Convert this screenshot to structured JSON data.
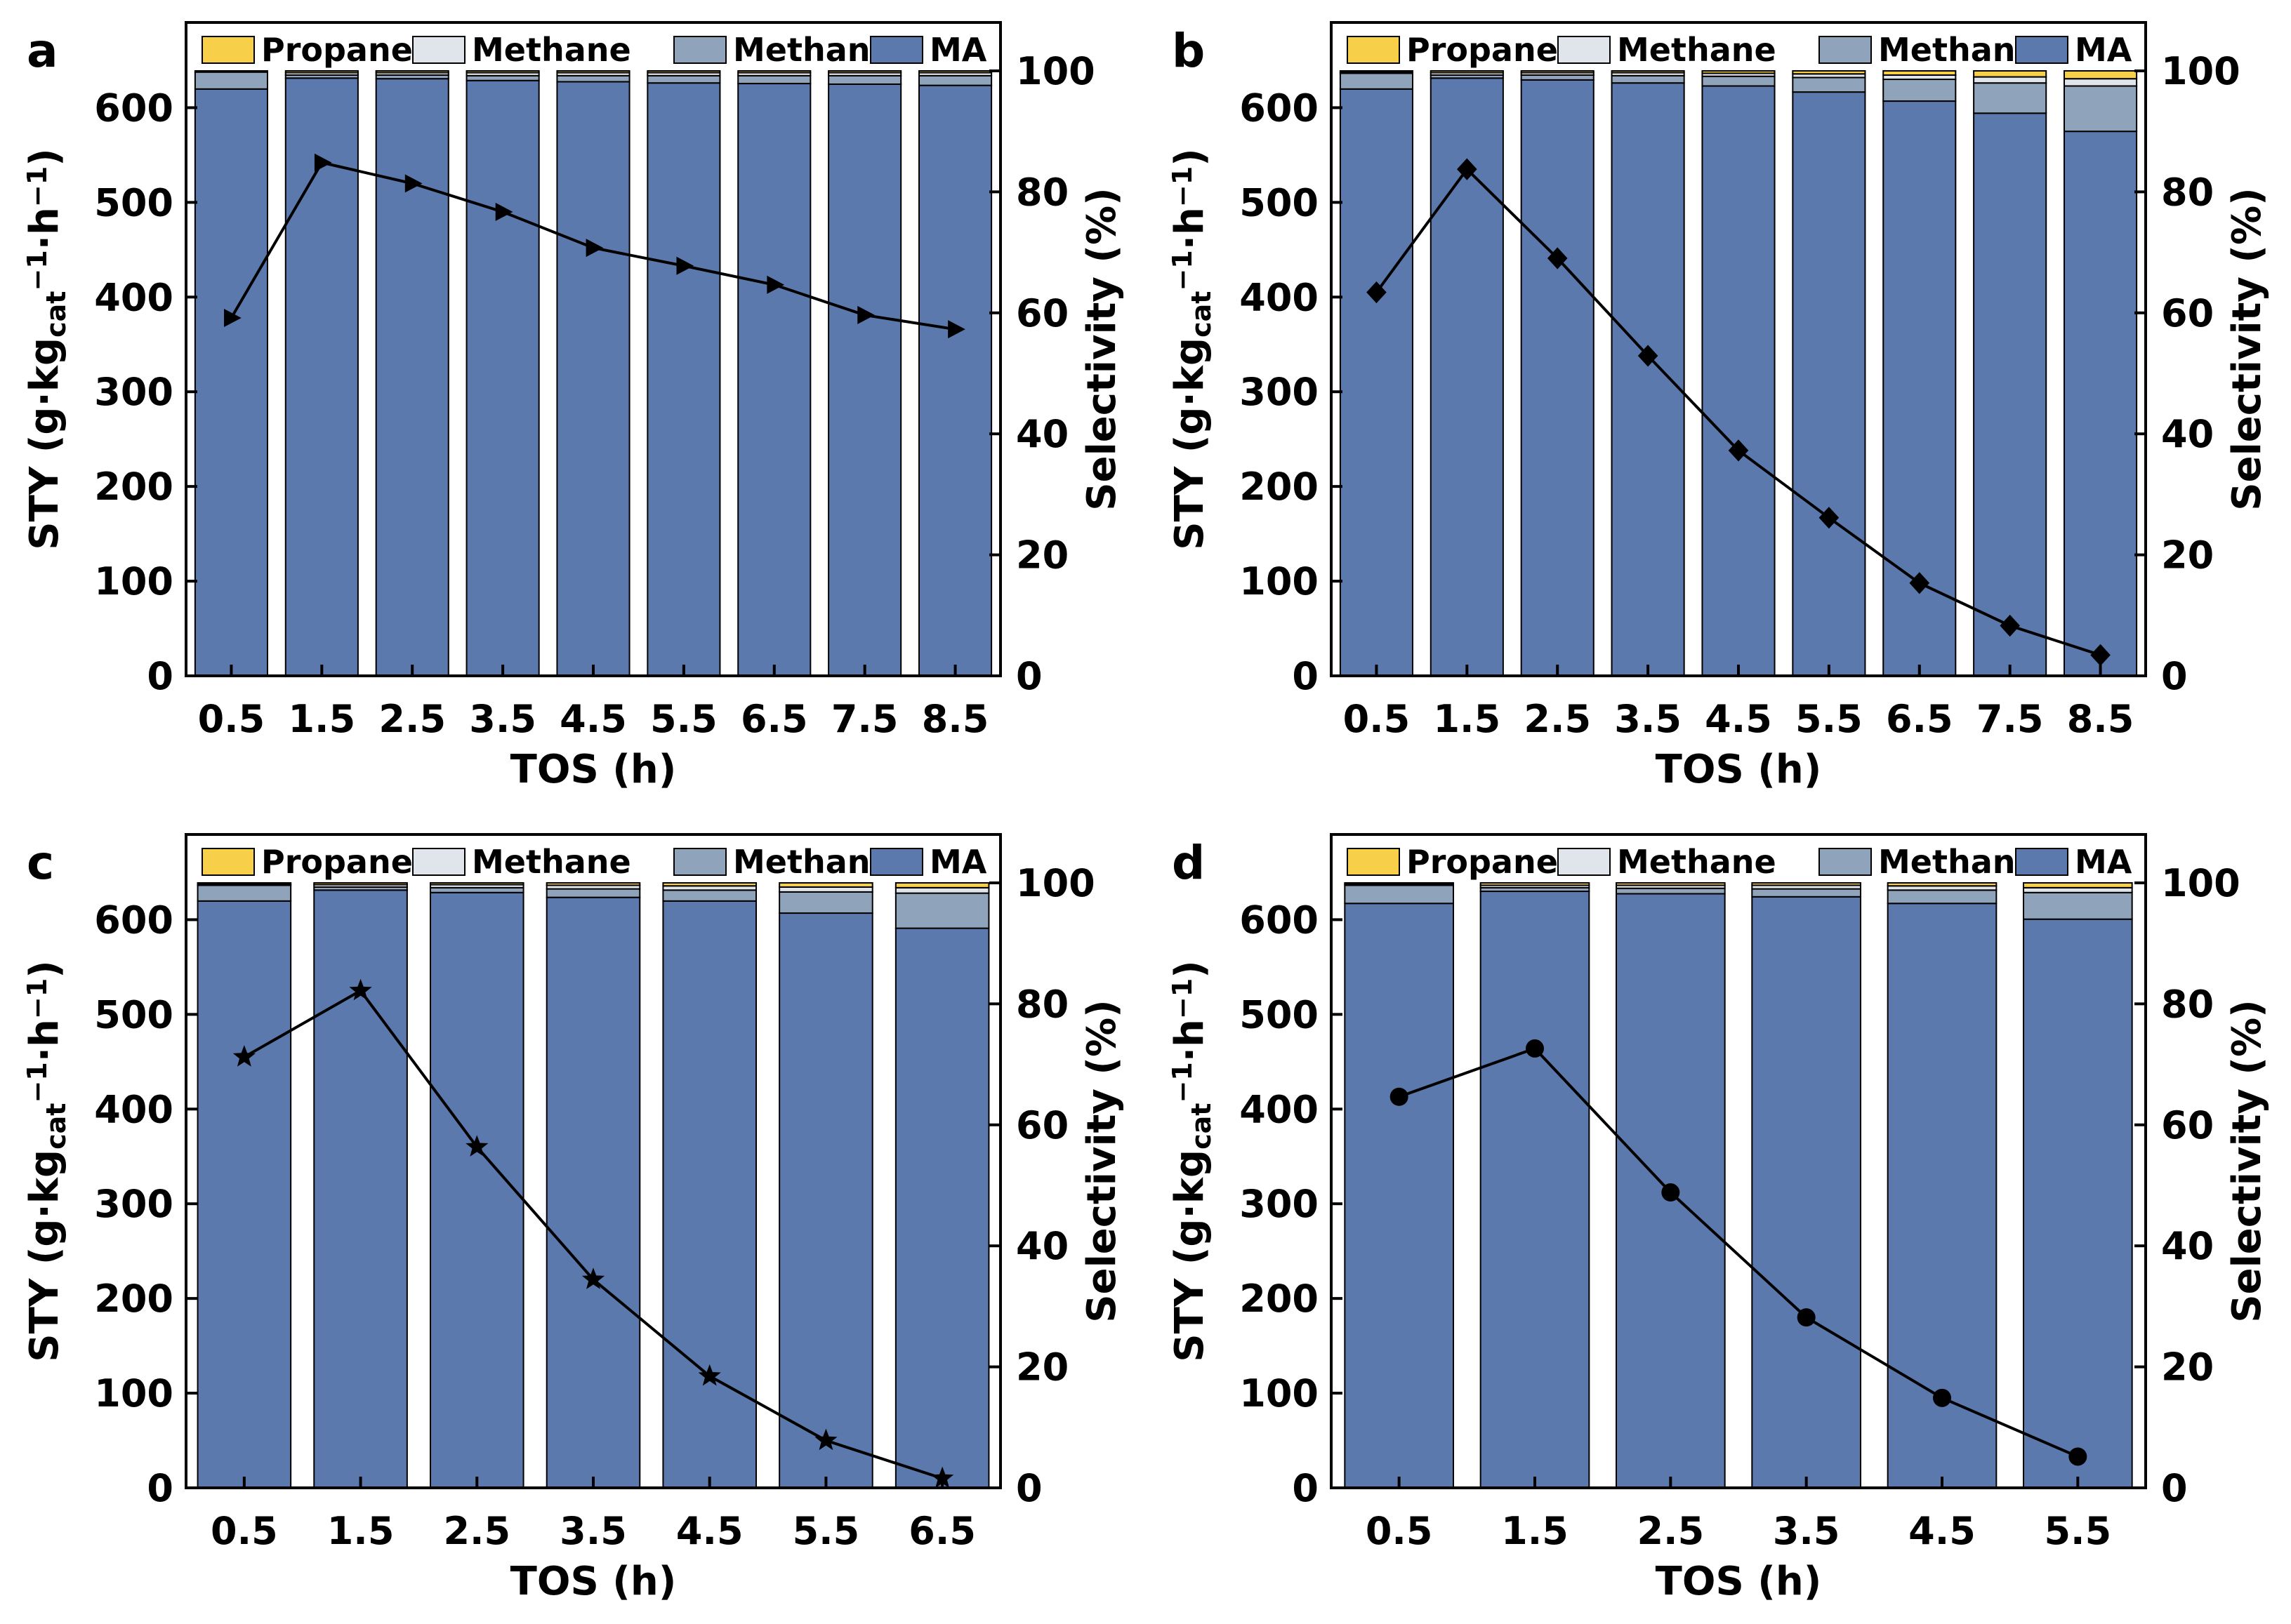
{
  "figure": {
    "colors": {
      "MA": "#5b79ad",
      "Methanol": "#8fa4ba",
      "Methane": "#dfe5ea",
      "Propane": "#f8cf49",
      "line": "#000000"
    }
  },
  "chart_data": [
    {
      "panel": "a",
      "type": "bar",
      "stacked": true,
      "legend": [
        "Propane",
        "Methane",
        "Methanol",
        "MA"
      ],
      "xlabel": "TOS (h)",
      "ylabel": {
        "main": "STY (g·kg",
        "sub": "cat",
        "sup": "−1",
        "tail": "·h",
        "sup2": "−1",
        "close": ")"
      },
      "y2label": "Selectivity (%)",
      "ylim": [
        0,
        690
      ],
      "y_ticks": [
        0,
        100,
        200,
        300,
        400,
        500,
        600
      ],
      "y2lim": [
        0,
        108
      ],
      "y2_ticks": [
        0,
        20,
        40,
        60,
        80,
        100
      ],
      "categories": [
        "0.5",
        "1.5",
        "2.5",
        "3.5",
        "4.5",
        "5.5",
        "6.5",
        "7.5",
        "8.5"
      ],
      "selectivity_series": [
        {
          "name": "MA",
          "values": [
            97.0,
            98.8,
            98.7,
            98.4,
            98.2,
            98.0,
            97.9,
            97.8,
            97.6
          ]
        },
        {
          "name": "Methanol",
          "values": [
            2.8,
            0.5,
            0.6,
            0.8,
            1.0,
            1.2,
            1.3,
            1.4,
            1.6
          ]
        },
        {
          "name": "Methane",
          "values": [
            0.2,
            0.4,
            0.4,
            0.5,
            0.5,
            0.5,
            0.5,
            0.5,
            0.5
          ]
        },
        {
          "name": "Propane",
          "values": [
            0.0,
            0.3,
            0.3,
            0.3,
            0.3,
            0.3,
            0.3,
            0.3,
            0.3
          ]
        }
      ],
      "sty_marker": "triangle",
      "sty_values": [
        378,
        542,
        520,
        490,
        452,
        433,
        413,
        381,
        366
      ]
    },
    {
      "panel": "b",
      "type": "bar",
      "stacked": true,
      "legend": [
        "Propane",
        "Methane",
        "Methanol",
        "MA"
      ],
      "xlabel": "TOS (h)",
      "ylabel": {
        "main": "STY (g·kg",
        "sub": "cat",
        "sup": "−1",
        "tail": "·h",
        "sup2": "−1",
        "close": ")"
      },
      "y2label": "Selectivity (%)",
      "ylim": [
        0,
        690
      ],
      "y_ticks": [
        0,
        100,
        200,
        300,
        400,
        500,
        600
      ],
      "y2lim": [
        0,
        108
      ],
      "y2_ticks": [
        0,
        20,
        40,
        60,
        80,
        100
      ],
      "categories": [
        "0.5",
        "1.5",
        "2.5",
        "3.5",
        "4.5",
        "5.5",
        "6.5",
        "7.5",
        "8.5"
      ],
      "selectivity_series": [
        {
          "name": "MA",
          "values": [
            97.0,
            98.8,
            98.5,
            98.0,
            97.5,
            96.5,
            95.0,
            93.0,
            90.0
          ]
        },
        {
          "name": "Methanol",
          "values": [
            2.6,
            0.5,
            0.8,
            1.2,
            1.6,
            2.4,
            3.6,
            5.0,
            7.5
          ]
        },
        {
          "name": "Methane",
          "values": [
            0.2,
            0.4,
            0.4,
            0.5,
            0.5,
            0.6,
            0.7,
            1.0,
            1.2
          ]
        },
        {
          "name": "Propane",
          "values": [
            0.2,
            0.3,
            0.3,
            0.3,
            0.4,
            0.5,
            0.7,
            1.0,
            1.3
          ]
        }
      ],
      "sty_marker": "diamond",
      "sty_values": [
        405,
        535,
        441,
        338,
        238,
        167,
        98,
        53,
        22
      ]
    },
    {
      "panel": "c",
      "type": "bar",
      "stacked": true,
      "legend": [
        "Propane",
        "Methane",
        "Methanol",
        "MA"
      ],
      "xlabel": "TOS (h)",
      "ylabel": {
        "main": "STY (g·kg",
        "sub": "cat",
        "sup": "−1",
        "tail": "·h",
        "sup2": "−1",
        "close": ")"
      },
      "y2label": "Selectivity (%)",
      "ylim": [
        0,
        690
      ],
      "y_ticks": [
        0,
        100,
        200,
        300,
        400,
        500,
        600
      ],
      "y2lim": [
        0,
        108
      ],
      "y2_ticks": [
        0,
        20,
        40,
        60,
        80,
        100
      ],
      "categories": [
        "0.5",
        "1.5",
        "2.5",
        "3.5",
        "4.5",
        "5.5",
        "6.5"
      ],
      "selectivity_series": [
        {
          "name": "MA",
          "values": [
            97.0,
            98.8,
            98.4,
            97.6,
            97.0,
            95.0,
            92.5
          ]
        },
        {
          "name": "Methanol",
          "values": [
            2.6,
            0.5,
            0.8,
            1.4,
            1.8,
            3.5,
            5.8
          ]
        },
        {
          "name": "Methane",
          "values": [
            0.2,
            0.4,
            0.5,
            0.6,
            0.7,
            0.8,
            0.9
          ]
        },
        {
          "name": "Propane",
          "values": [
            0.2,
            0.3,
            0.3,
            0.4,
            0.5,
            0.7,
            0.8
          ]
        }
      ],
      "sty_marker": "star",
      "sty_values": [
        455,
        525,
        360,
        220,
        118,
        50,
        10
      ]
    },
    {
      "panel": "d",
      "type": "bar",
      "stacked": true,
      "legend": [
        "Propane",
        "Methane",
        "Methanol",
        "MA"
      ],
      "xlabel": "TOS (h)",
      "ylabel": {
        "main": "STY (g·kg",
        "sub": "cat",
        "sup": "−1",
        "tail": "·h",
        "sup2": "−1",
        "close": ")"
      },
      "y2label": "Selectivity (%)",
      "ylim": [
        0,
        690
      ],
      "y_ticks": [
        0,
        100,
        200,
        300,
        400,
        500,
        600
      ],
      "y2lim": [
        0,
        108
      ],
      "y2_ticks": [
        0,
        20,
        40,
        60,
        80,
        100
      ],
      "categories": [
        "0.5",
        "1.5",
        "2.5",
        "3.5",
        "4.5",
        "5.5"
      ],
      "selectivity_series": [
        {
          "name": "MA",
          "values": [
            96.6,
            98.6,
            98.2,
            97.7,
            96.6,
            94.0
          ]
        },
        {
          "name": "Methanol",
          "values": [
            3.0,
            0.6,
            0.9,
            1.3,
            2.2,
            4.4
          ]
        },
        {
          "name": "Methane",
          "values": [
            0.2,
            0.4,
            0.5,
            0.6,
            0.7,
            0.8
          ]
        },
        {
          "name": "Propane",
          "values": [
            0.2,
            0.4,
            0.4,
            0.4,
            0.5,
            0.8
          ]
        }
      ],
      "sty_marker": "circle",
      "sty_values": [
        413,
        464,
        312,
        180,
        95,
        33
      ]
    }
  ]
}
